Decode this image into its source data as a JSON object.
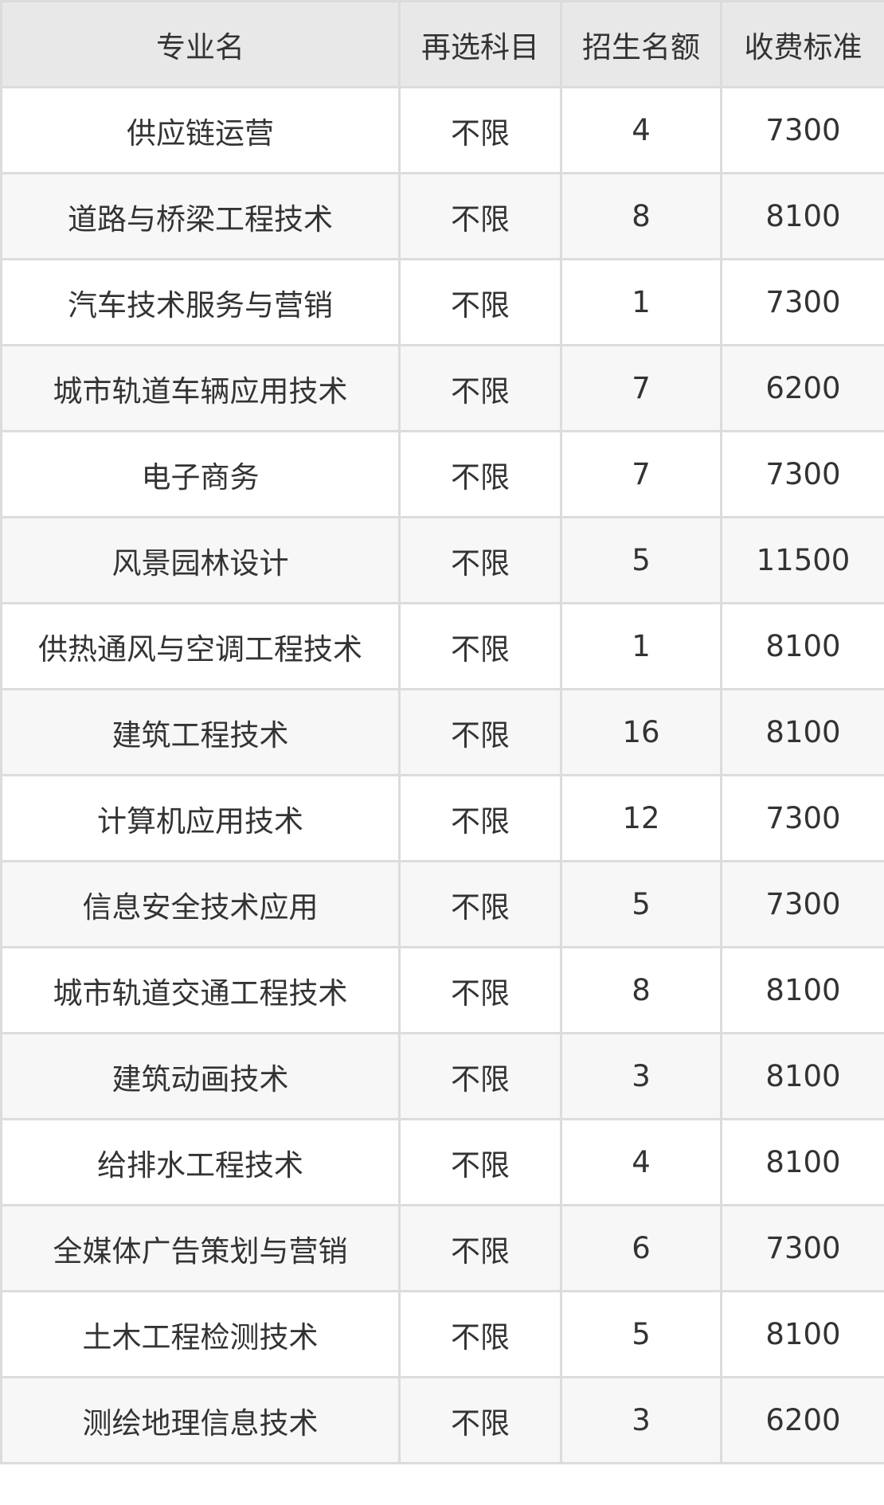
{
  "table": {
    "headers": [
      "专业名",
      "再选科目",
      "招生名额",
      "收费标准"
    ],
    "rows": [
      [
        "供应链运营",
        "不限",
        "4",
        "7300"
      ],
      [
        "道路与桥梁工程技术",
        "不限",
        "8",
        "8100"
      ],
      [
        "汽车技术服务与营销",
        "不限",
        "1",
        "7300"
      ],
      [
        "城市轨道车辆应用技术",
        "不限",
        "7",
        "6200"
      ],
      [
        "电子商务",
        "不限",
        "7",
        "7300"
      ],
      [
        "风景园林设计",
        "不限",
        "5",
        "11500"
      ],
      [
        "供热通风与空调工程技术",
        "不限",
        "1",
        "8100"
      ],
      [
        "建筑工程技术",
        "不限",
        "16",
        "8100"
      ],
      [
        "计算机应用技术",
        "不限",
        "12",
        "7300"
      ],
      [
        "信息安全技术应用",
        "不限",
        "5",
        "7300"
      ],
      [
        "城市轨道交通工程技术",
        "不限",
        "8",
        "8100"
      ],
      [
        "建筑动画技术",
        "不限",
        "3",
        "8100"
      ],
      [
        "给排水工程技术",
        "不限",
        "4",
        "8100"
      ],
      [
        "全媒体广告策划与营销",
        "不限",
        "6",
        "7300"
      ],
      [
        "土木工程检测技术",
        "不限",
        "5",
        "8100"
      ],
      [
        "测绘地理信息技术",
        "不限",
        "3",
        "6200"
      ]
    ]
  }
}
